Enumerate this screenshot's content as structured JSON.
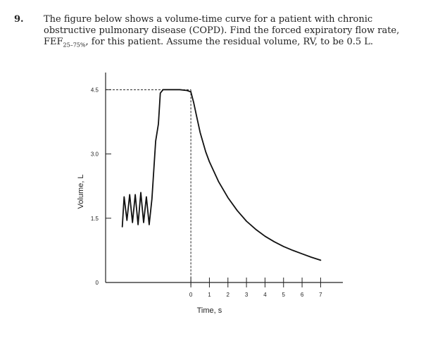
{
  "problem": {
    "number": "9.",
    "line1": "The figure below shows a volume-time curve for a patient with chronic",
    "line2": "obstructive pulmonary disease (COPD). Find the forced expiratory flow rate,",
    "line3_pre": "FEF",
    "line3_sub": "25–75%",
    "line3_post": ", for this patient. Assume the residual volume, RV, to be 0.5 L."
  },
  "chart_data": {
    "type": "line",
    "xlabel": "Time, s",
    "ylabel": "Volume, L",
    "x_ticks": [
      "0",
      "1",
      "2",
      "3",
      "4",
      "5",
      "6",
      "7"
    ],
    "y_ticks": [
      "0",
      "1.5",
      "3.0",
      "4.5"
    ],
    "ylim": [
      0,
      4.9
    ],
    "xlim": [
      -4.6,
      8.2
    ],
    "reference_lines": {
      "peak_volume": 4.5,
      "expiration_start_time": 0
    },
    "series": [
      {
        "description": "tidal breathing then inspiration",
        "x": [
          -3.7,
          -3.6,
          -3.45,
          -3.3,
          -3.15,
          -3.0,
          -2.85,
          -2.7,
          -2.55,
          -2.4,
          -2.25,
          -2.1,
          -1.9,
          -1.75,
          -1.65,
          -1.5,
          -1.3,
          -1.0,
          -0.6,
          -0.2,
          0
        ],
        "y": [
          1.3,
          2.0,
          1.45,
          2.05,
          1.4,
          2.05,
          1.35,
          2.1,
          1.4,
          2.0,
          1.35,
          1.95,
          3.3,
          3.7,
          4.42,
          4.5,
          4.5,
          4.5,
          4.5,
          4.48,
          4.45
        ]
      },
      {
        "description": "forced expiration",
        "x": [
          0,
          0.15,
          0.3,
          0.5,
          0.8,
          1.0,
          1.5,
          2.0,
          2.5,
          3.0,
          3.5,
          4.0,
          4.5,
          5.0,
          5.5,
          6.0,
          6.5,
          7.0
        ],
        "y": [
          4.45,
          4.2,
          3.9,
          3.5,
          3.05,
          2.82,
          2.35,
          1.98,
          1.68,
          1.43,
          1.24,
          1.08,
          0.95,
          0.84,
          0.75,
          0.67,
          0.59,
          0.52
        ]
      }
    ]
  }
}
